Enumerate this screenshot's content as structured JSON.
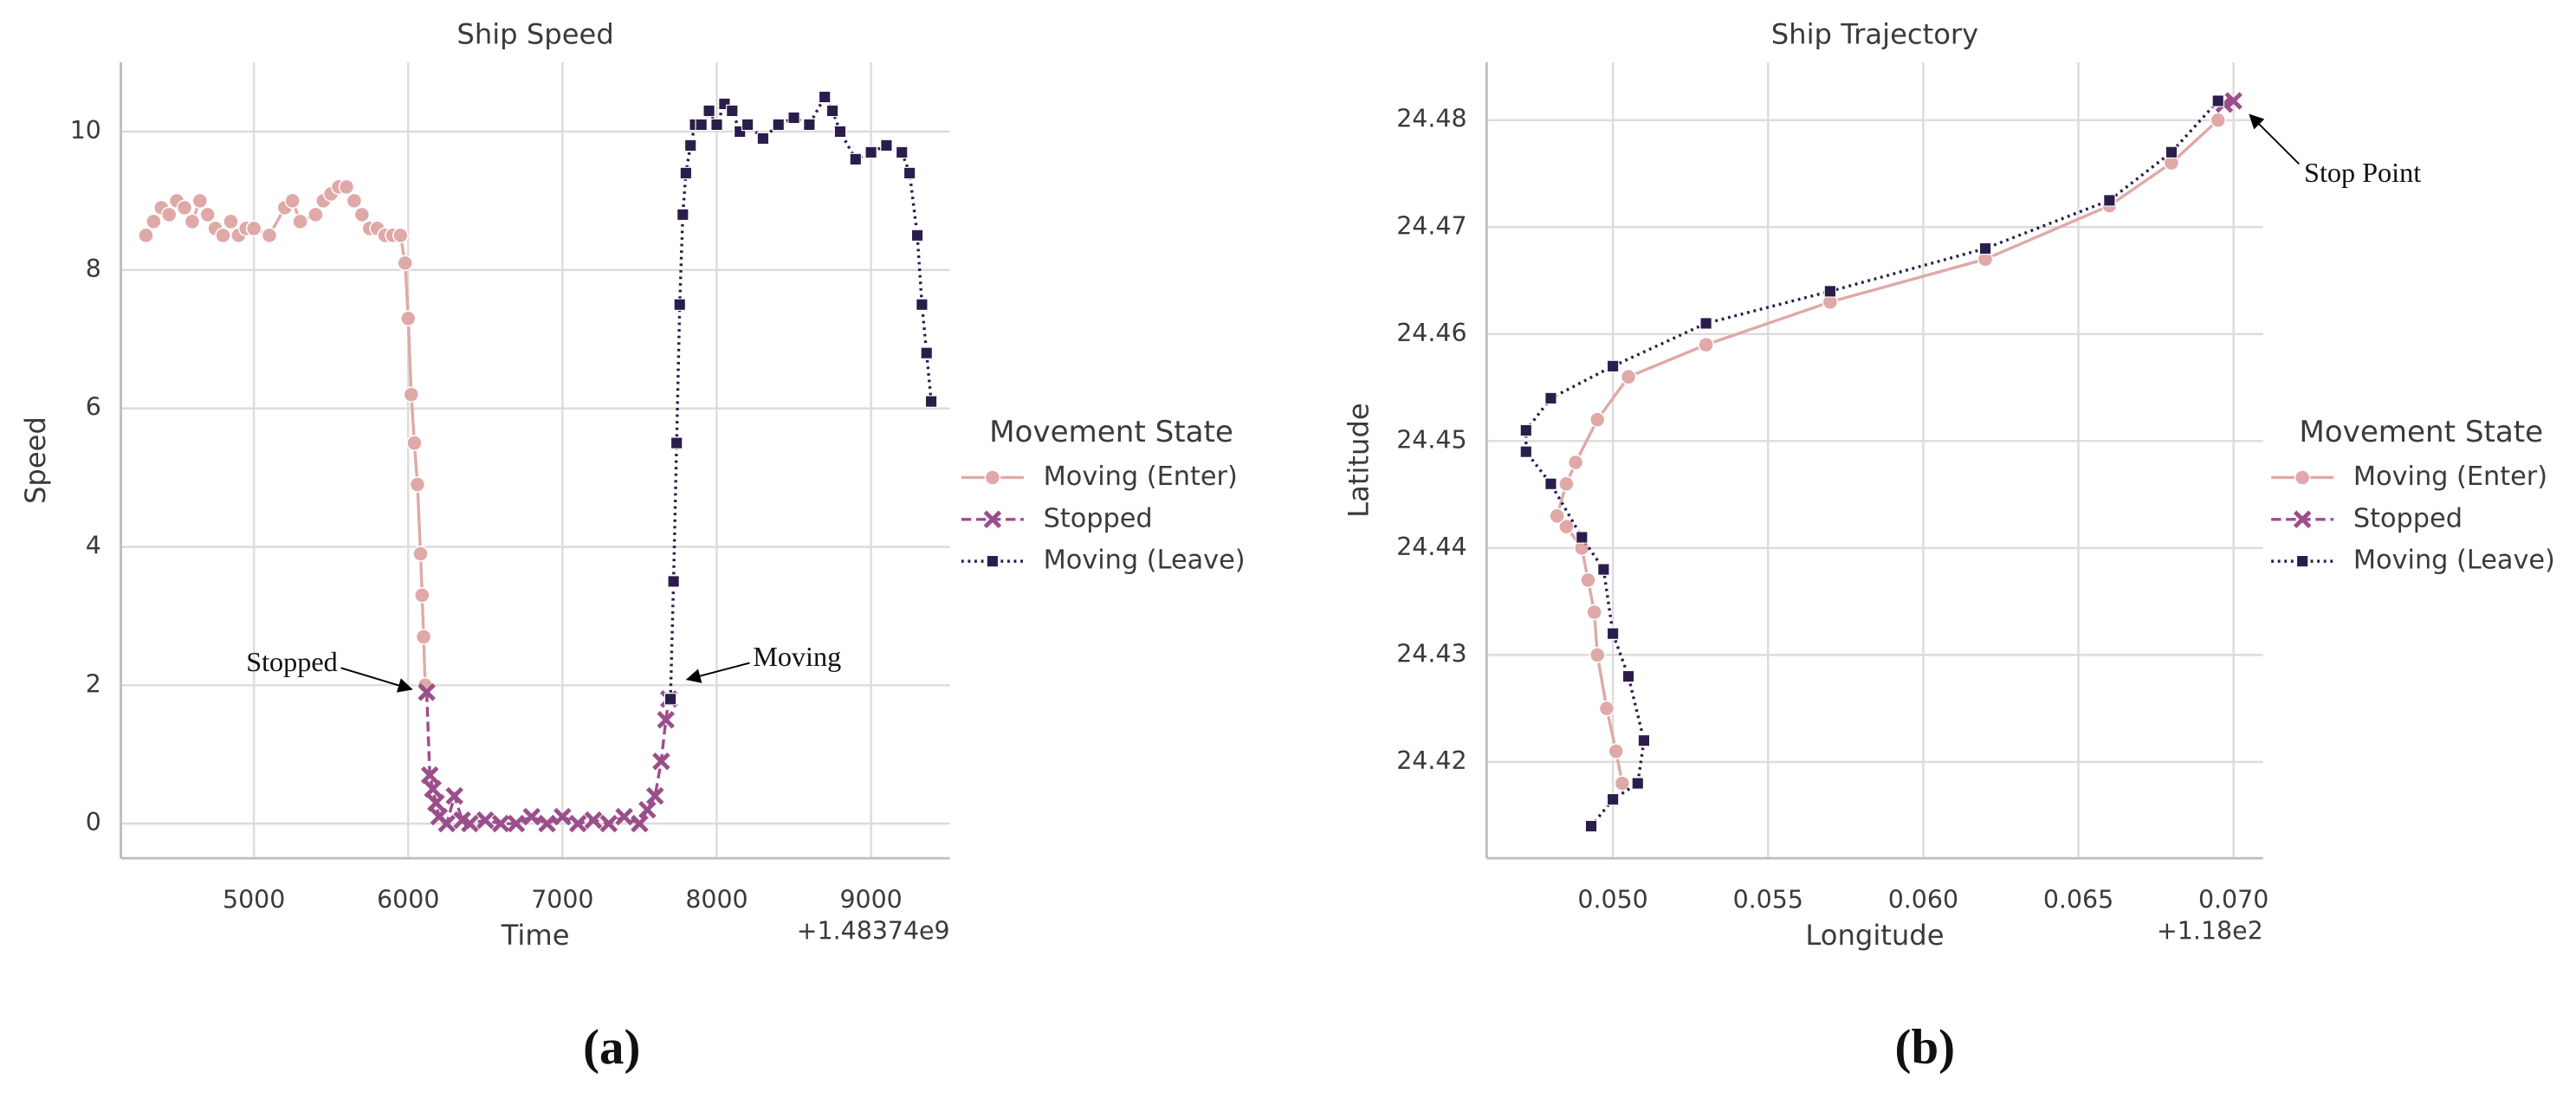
{
  "chart_data": [
    {
      "type": "line",
      "title": "Ship Speed",
      "x_label": "Time",
      "y_label": "Speed",
      "x_offset_label": "+1.48374e9",
      "caption": "(a)",
      "legend_title": "Movement State",
      "legend": "right",
      "grid": true,
      "xlim": [
        4138,
        9511
      ],
      "xticks": [
        5000,
        6000,
        7000,
        8000,
        9000
      ],
      "ylim": [
        -0.5,
        11.0
      ],
      "yticks": [
        0,
        2,
        4,
        6,
        8,
        10
      ],
      "annotations": [
        "Stopped",
        "Moving"
      ],
      "series": [
        {
          "name": "Moving (Enter)",
          "color": "#dfa9a8",
          "marker": "circle",
          "linestyle": "solid",
          "x": [
            4300,
            4350,
            4400,
            4450,
            4500,
            4550,
            4600,
            4650,
            4700,
            4750,
            4800,
            4850,
            4900,
            4950,
            5000,
            5100,
            5200,
            5250,
            5300,
            5400,
            5450,
            5500,
            5550,
            5600,
            5650,
            5700,
            5750,
            5800,
            5850,
            5900,
            5950,
            5980,
            6000,
            6020,
            6040,
            6060,
            6080,
            6090,
            6100,
            6110
          ],
          "values": [
            8.5,
            8.7,
            8.9,
            8.8,
            9.0,
            8.9,
            8.7,
            9.0,
            8.8,
            8.6,
            8.5,
            8.7,
            8.5,
            8.6,
            8.6,
            8.5,
            8.9,
            9.0,
            8.7,
            8.8,
            9.0,
            9.1,
            9.2,
            9.2,
            9.0,
            8.8,
            8.6,
            8.6,
            8.5,
            8.5,
            8.5,
            8.1,
            7.3,
            6.2,
            5.5,
            4.9,
            3.9,
            3.3,
            2.7,
            2.0
          ]
        },
        {
          "name": "Stopped",
          "color": "#9b4f8a",
          "marker": "x",
          "linestyle": "dashed",
          "x": [
            6120,
            6140,
            6160,
            6180,
            6200,
            6250,
            6300,
            6350,
            6400,
            6500,
            6600,
            6700,
            6800,
            6900,
            7000,
            7100,
            7200,
            7300,
            7400,
            7500,
            7550,
            7600,
            7640,
            7670,
            7690
          ],
          "values": [
            1.9,
            0.7,
            0.5,
            0.3,
            0.1,
            0.0,
            0.4,
            0.05,
            0.0,
            0.05,
            0.0,
            0.0,
            0.1,
            0.0,
            0.1,
            0.0,
            0.05,
            0.0,
            0.1,
            0.0,
            0.2,
            0.4,
            0.9,
            1.5,
            1.8
          ]
        },
        {
          "name": "Moving (Leave)",
          "color": "#2b1d4b",
          "marker": "square",
          "linestyle": "dotted",
          "x": [
            7700,
            7720,
            7740,
            7760,
            7780,
            7800,
            7830,
            7860,
            7900,
            7950,
            8000,
            8050,
            8100,
            8150,
            8200,
            8300,
            8400,
            8500,
            8600,
            8700,
            8750,
            8800,
            8900,
            9000,
            9100,
            9200,
            9250,
            9300,
            9330,
            9360,
            9390
          ],
          "values": [
            1.8,
            3.5,
            5.5,
            7.5,
            8.8,
            9.4,
            9.8,
            10.1,
            10.1,
            10.3,
            10.1,
            10.4,
            10.3,
            10.0,
            10.1,
            9.9,
            10.1,
            10.2,
            10.1,
            10.5,
            10.3,
            10.0,
            9.6,
            9.7,
            9.8,
            9.7,
            9.4,
            8.5,
            7.5,
            6.8,
            6.1
          ]
        }
      ]
    },
    {
      "type": "line",
      "title": "Ship Trajectory",
      "x_label": "Longitude",
      "y_label": "Latitude",
      "x_offset_label": "+1.18e2",
      "caption": "(b)",
      "legend_title": "Movement State",
      "legend": "right",
      "grid": true,
      "xlim": [
        0.04593,
        0.07095
      ],
      "xticks": [
        {
          "value": 0.05,
          "label": "0.050"
        },
        {
          "value": 0.055,
          "label": "0.055"
        },
        {
          "value": 0.06,
          "label": "0.060"
        },
        {
          "value": 0.065,
          "label": "0.065"
        },
        {
          "value": 0.07,
          "label": "0.070"
        }
      ],
      "ylim": [
        24.411,
        24.4854
      ],
      "yticks": [
        24.42,
        24.43,
        24.44,
        24.45,
        24.46,
        24.47,
        24.48
      ],
      "annotations": [
        "Stop Point"
      ],
      "series": [
        {
          "name": "Moving (Enter)",
          "color": "#dfa9a8",
          "marker": "circle",
          "linestyle": "solid",
          "x": [
            0.0503,
            0.0501,
            0.0498,
            0.0495,
            0.0494,
            0.0492,
            0.049,
            0.0485,
            0.0482,
            0.0485,
            0.0488,
            0.0495,
            0.0505,
            0.053,
            0.057,
            0.062,
            0.066,
            0.068,
            0.0695
          ],
          "values": [
            24.418,
            24.421,
            24.425,
            24.43,
            24.434,
            24.437,
            24.44,
            24.442,
            24.443,
            24.446,
            24.448,
            24.452,
            24.456,
            24.459,
            24.463,
            24.467,
            24.472,
            24.476,
            24.48
          ]
        },
        {
          "name": "Stopped",
          "color": "#9b4f8a",
          "marker": "x",
          "linestyle": "dashed",
          "x": [
            0.0697,
            0.07
          ],
          "values": [
            24.4815,
            24.4818
          ]
        },
        {
          "name": "Moving (Leave)",
          "color": "#2b1d4b",
          "marker": "square",
          "linestyle": "dotted",
          "x": [
            0.0695,
            0.068,
            0.066,
            0.062,
            0.057,
            0.053,
            0.05,
            0.048,
            0.0472,
            0.0472,
            0.048,
            0.049,
            0.0497,
            0.05,
            0.0505,
            0.051,
            0.0508,
            0.05,
            0.0493
          ],
          "values": [
            24.4818,
            24.477,
            24.4725,
            24.468,
            24.464,
            24.461,
            24.457,
            24.454,
            24.451,
            24.449,
            24.446,
            24.441,
            24.438,
            24.432,
            24.428,
            24.422,
            24.418,
            24.4165,
            24.414
          ]
        }
      ]
    }
  ]
}
